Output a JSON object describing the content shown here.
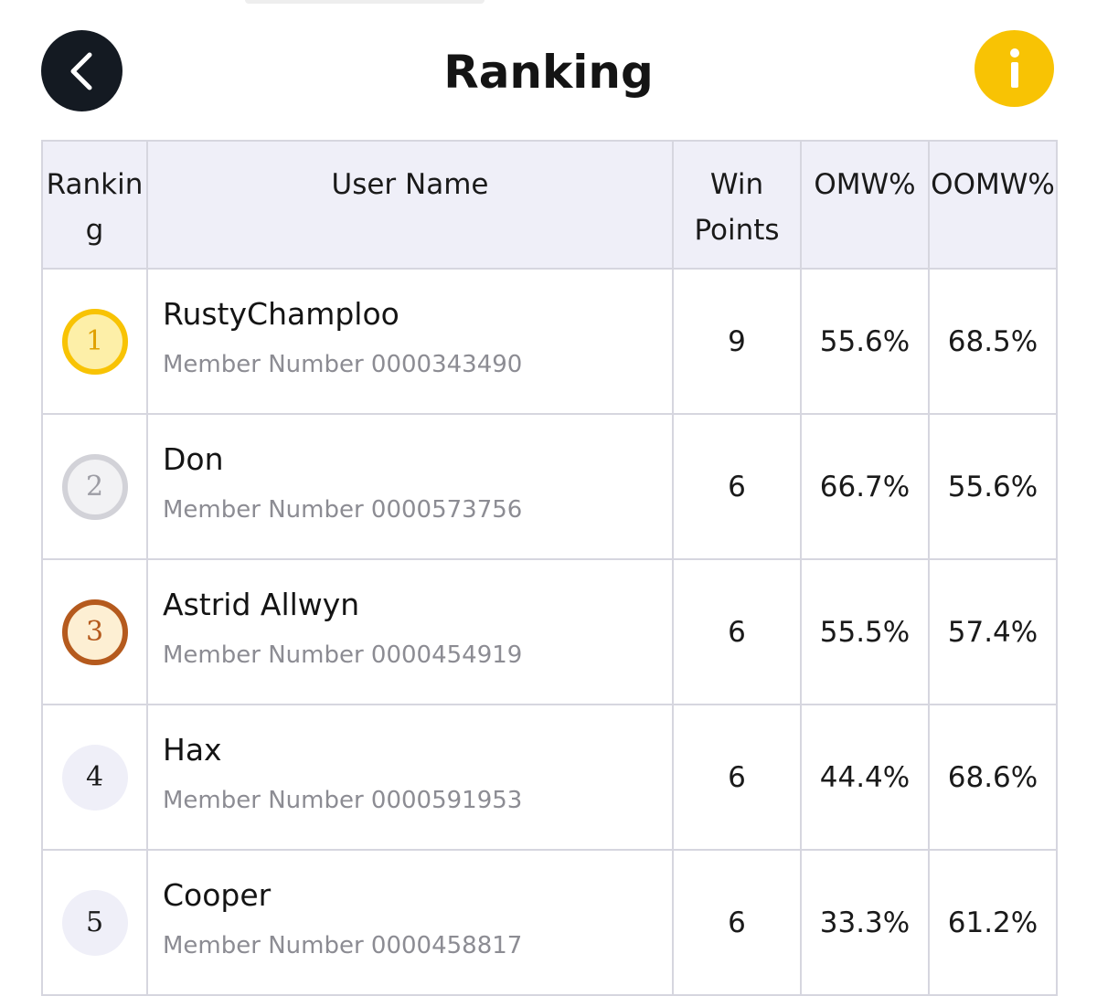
{
  "header": {
    "title": "Ranking",
    "back_icon": "chevron-left-icon",
    "info_icon": "info-icon",
    "info_color": "#f8c304",
    "back_color": "#141a22"
  },
  "table": {
    "columns": {
      "ranking": "Ranking",
      "user_name": "User Name",
      "win_points": "Win Points",
      "omw": "OMW%",
      "oomw": "OOMW%"
    },
    "member_prefix": "Member Number",
    "rows": [
      {
        "rank": "1",
        "medal": "gold",
        "name": "RustyChamploo",
        "member_number": "0000343490",
        "win_points": "9",
        "omw": "55.6%",
        "oomw": "68.5%"
      },
      {
        "rank": "2",
        "medal": "silver",
        "name": "Don",
        "member_number": "0000573756",
        "win_points": "6",
        "omw": "66.7%",
        "oomw": "55.6%"
      },
      {
        "rank": "3",
        "medal": "bronze",
        "name": "Astrid Allwyn",
        "member_number": "0000454919",
        "win_points": "6",
        "omw": "55.5%",
        "oomw": "57.4%"
      },
      {
        "rank": "4",
        "medal": "none",
        "name": "Hax",
        "member_number": "0000591953",
        "win_points": "6",
        "omw": "44.4%",
        "oomw": "68.6%"
      },
      {
        "rank": "5",
        "medal": "none",
        "name": "Cooper",
        "member_number": "0000458817",
        "win_points": "6",
        "omw": "33.3%",
        "oomw": "61.2%"
      }
    ]
  }
}
